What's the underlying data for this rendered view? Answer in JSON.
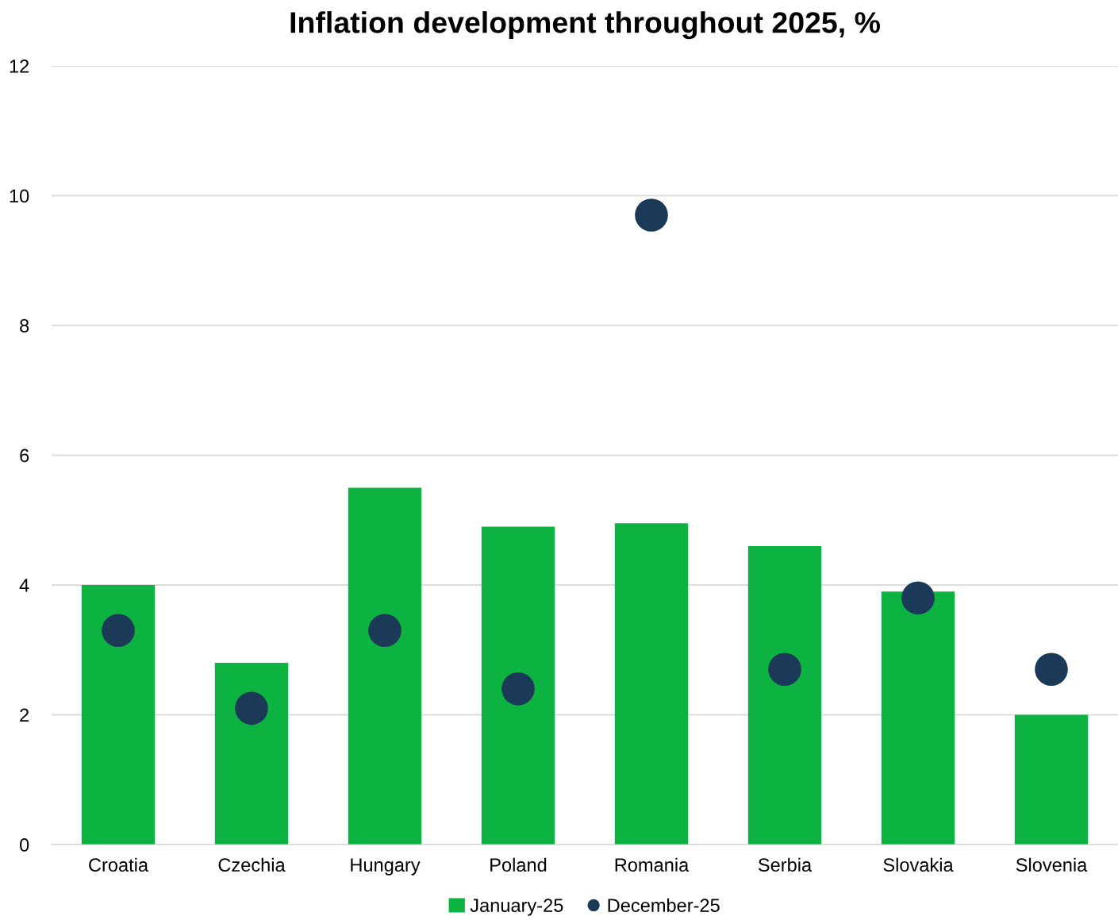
{
  "chart_data": {
    "type": "bar",
    "title": "Inflation development throughout 2025, %",
    "categories": [
      "Croatia",
      "Czechia",
      "Hungary",
      "Poland",
      "Romania",
      "Serbia",
      "Slovakia",
      "Slovenia"
    ],
    "series": [
      {
        "name": "January-25",
        "color": "#0db340",
        "values": [
          4.0,
          2.8,
          5.5,
          4.9,
          4.95,
          4.6,
          3.9,
          2.0
        ]
      },
      {
        "name": "December-25",
        "type": "scatter",
        "color": "#1b3a57",
        "marker": "circle",
        "values": [
          3.3,
          2.1,
          3.3,
          2.4,
          9.7,
          2.7,
          3.8,
          2.7
        ]
      }
    ],
    "ylim": [
      0,
      12
    ],
    "yticks": [
      0,
      2,
      4,
      6,
      8,
      10,
      12
    ],
    "grid": "y",
    "legend": "bottom"
  }
}
